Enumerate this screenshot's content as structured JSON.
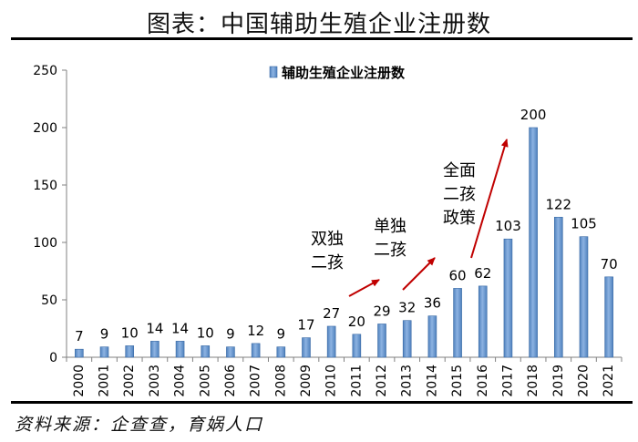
{
  "figure_title": "图表：中国辅助生殖企业注册数",
  "source": "资料来源：企查查，育娲人口",
  "colors": {
    "bar": "#4f81bd",
    "bar_light": "#8db3e2",
    "arrow": "#c00000",
    "axis": "#808080"
  },
  "chart_data": {
    "type": "bar",
    "title": "",
    "legend": "辅助生殖企业注册数",
    "legend_position": "top-center",
    "xlabel": "",
    "ylabel": "",
    "ylim": [
      0,
      250
    ],
    "yticks": [
      0,
      50,
      100,
      150,
      200,
      250
    ],
    "categories": [
      "2000",
      "2001",
      "2002",
      "2003",
      "2004",
      "2005",
      "2006",
      "2007",
      "2008",
      "2009",
      "2010",
      "2011",
      "2012",
      "2013",
      "2014",
      "2015",
      "2016",
      "2017",
      "2018",
      "2019",
      "2020",
      "2021"
    ],
    "values": [
      7,
      9,
      10,
      14,
      14,
      10,
      9,
      12,
      9,
      17,
      27,
      20,
      29,
      32,
      36,
      60,
      62,
      103,
      200,
      122,
      105,
      70
    ],
    "annotations": [
      {
        "lines": [
          "双独",
          "二孩"
        ],
        "near": "2010"
      },
      {
        "lines": [
          "单独",
          "二孩"
        ],
        "near": "2013"
      },
      {
        "lines": [
          "全面",
          "二孩",
          "政策"
        ],
        "near": "2015"
      }
    ]
  }
}
